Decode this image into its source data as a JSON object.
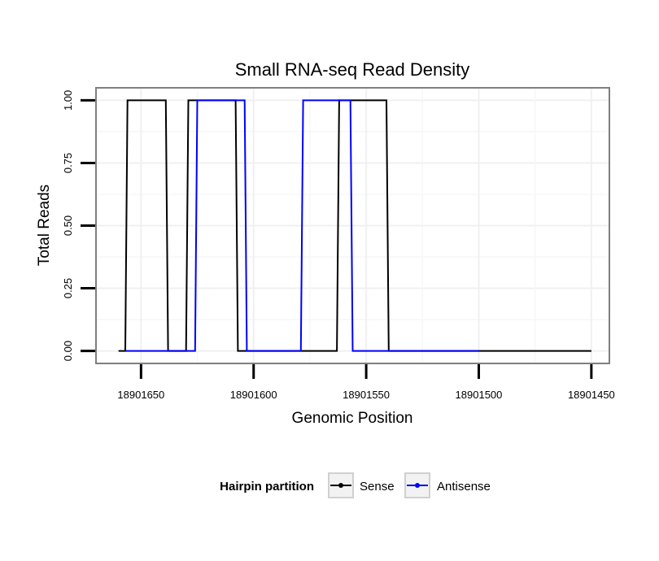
{
  "chart_data": {
    "type": "line",
    "title": "Small RNA-seq Read Density",
    "xlabel": "Genomic Position",
    "ylabel": "Total Reads",
    "x_reversed": true,
    "xlim": [
      18901670,
      18901442
    ],
    "ylim": [
      -0.05,
      1.05
    ],
    "x_ticks": [
      18901650,
      18901600,
      18901550,
      18901500,
      18901450
    ],
    "x_tick_labels": [
      "18901650",
      "18901600",
      "18901550",
      "18901500",
      "18901450"
    ],
    "y_ticks": [
      0,
      0.25,
      0.5,
      0.75,
      1
    ],
    "y_tick_labels": [
      "0.00",
      "0.25",
      "0.50",
      "0.75",
      "1.00"
    ],
    "grid": true,
    "legend": {
      "title": "Hairpin partition",
      "position": "bottom"
    },
    "series": [
      {
        "name": "Sense",
        "color": "#000000",
        "x": [
          18901660,
          18901657,
          18901656,
          18901639,
          18901638,
          18901630,
          18901629,
          18901608,
          18901607,
          18901600,
          18901600,
          18901563,
          18901562,
          18901541,
          18901540,
          18901450
        ],
        "y": [
          0,
          0,
          1,
          1,
          0,
          0,
          1,
          1,
          0,
          0,
          0,
          0,
          1,
          1,
          0,
          0
        ]
      },
      {
        "name": "Antisense",
        "color": "#0000ff",
        "x": [
          18901657,
          18901626,
          18901625,
          18901604,
          18901603,
          18901579,
          18901578,
          18901557,
          18901556,
          18901540,
          18901540,
          18901500
        ],
        "y": [
          0,
          0,
          1,
          1,
          0,
          0,
          1,
          1,
          0,
          0,
          0,
          0
        ]
      }
    ]
  }
}
